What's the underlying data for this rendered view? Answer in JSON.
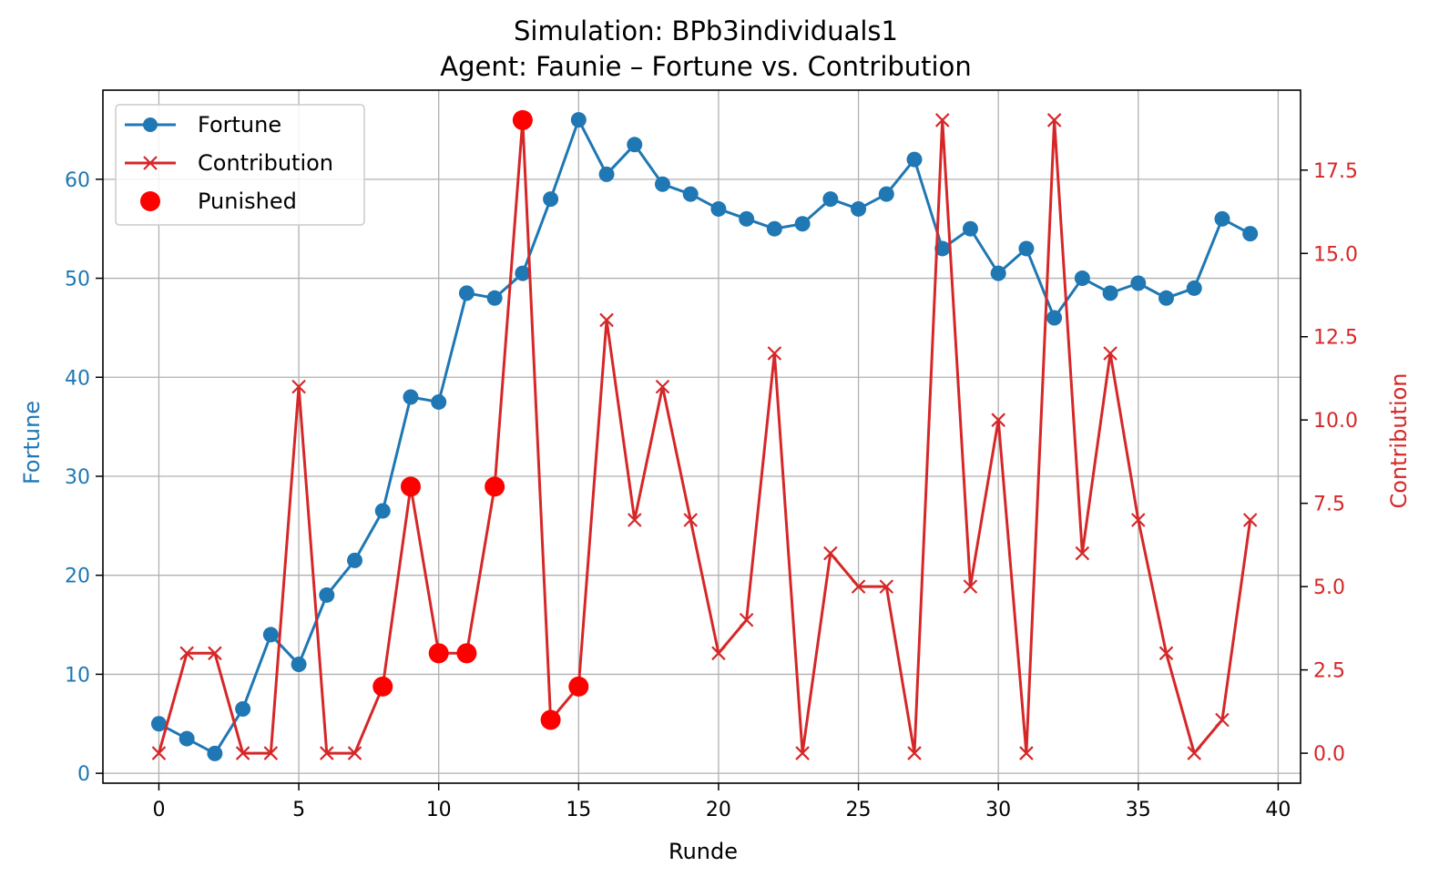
{
  "chart_data": {
    "type": "line",
    "title": "Simulation: BPb3individuals1",
    "subtitle": "Agent: Faunie – Fortune vs. Contribution",
    "xlabel": "Runde",
    "ylabel_left": "Fortune",
    "ylabel_right": "Contribution",
    "xlim": [
      -2,
      40.8
    ],
    "ylim_left": [
      -1,
      69
    ],
    "ylim_right": [
      -0.9,
      19.9
    ],
    "x_ticks": [
      0,
      5,
      10,
      15,
      20,
      25,
      30,
      35,
      40
    ],
    "x_tick_labels": [
      "0",
      "5",
      "10",
      "15",
      "20",
      "25",
      "30",
      "35",
      "40"
    ],
    "y_left_ticks": [
      0,
      10,
      20,
      30,
      40,
      50,
      60
    ],
    "y_left_tick_labels": [
      "0",
      "10",
      "20",
      "30",
      "40",
      "50",
      "60"
    ],
    "y_right_ticks": [
      0,
      2.5,
      5,
      7.5,
      10,
      12.5,
      15,
      17.5
    ],
    "y_right_tick_labels": [
      "0.0",
      "2.5",
      "5.0",
      "7.5",
      "10.0",
      "12.5",
      "15.0",
      "17.5"
    ],
    "grid": true,
    "legend_position": "top-left",
    "x": [
      0,
      1,
      2,
      3,
      4,
      5,
      6,
      7,
      8,
      9,
      10,
      11,
      12,
      13,
      14,
      15,
      16,
      17,
      18,
      19,
      20,
      21,
      22,
      23,
      24,
      25,
      26,
      27,
      28,
      29,
      30,
      31,
      32,
      33,
      34,
      35,
      36,
      37,
      38,
      39
    ],
    "series": [
      {
        "name": "Fortune",
        "axis": "left",
        "color": "#1f77b4",
        "marker": "circle",
        "values": [
          5,
          3.5,
          2,
          6.5,
          14,
          11,
          18,
          21.5,
          26.5,
          38,
          37.5,
          48.5,
          48,
          50.5,
          58,
          66,
          60.5,
          63.5,
          59.5,
          58.5,
          57,
          56,
          55,
          55.5,
          58,
          57,
          58.5,
          62,
          53,
          55,
          50.5,
          53,
          46,
          50,
          48.5,
          49.5,
          48,
          49,
          56,
          54.5
        ]
      },
      {
        "name": "Contribution",
        "axis": "right",
        "color": "#d62728",
        "marker": "x",
        "values": [
          0,
          3,
          3,
          0,
          0,
          11,
          0,
          0,
          2,
          8,
          3,
          3,
          8,
          19,
          1,
          2,
          13,
          7,
          11,
          7,
          3,
          4,
          12,
          0,
          6,
          5,
          5,
          0,
          19,
          5,
          10,
          0,
          19,
          6,
          12,
          7,
          3,
          0,
          1,
          7
        ]
      }
    ],
    "punished": {
      "name": "Punished",
      "axis": "right",
      "color": "#ff0000",
      "marker": "filled-circle",
      "x": [
        8,
        9,
        10,
        11,
        12,
        13,
        14,
        15
      ],
      "values": [
        2,
        8,
        3,
        3,
        8,
        19,
        1,
        2
      ]
    }
  }
}
